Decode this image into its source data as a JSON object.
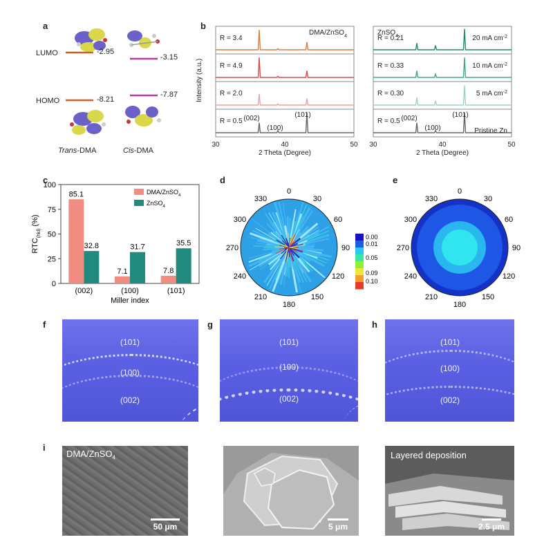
{
  "panel_a": {
    "label": "a",
    "lumo_label": "LUMO",
    "homo_label": "HOMO",
    "trans_lumo": "-2.95",
    "cis_lumo": "-3.15",
    "trans_homo": "-8.21",
    "cis_homo": "-7.87",
    "trans_name_italic": "Trans",
    "trans_name_rest": "-DMA",
    "cis_name_italic": "Cis",
    "cis_name_rest": "-DMA",
    "colors": {
      "trans": "#c8602a",
      "cis": "#b03aa8"
    }
  },
  "panel_b": {
    "label": "b",
    "ylabel": "Intensity (a.u.)",
    "left": {
      "title": "DMA/ZnSO",
      "title_sub": "4",
      "xlabel": "2 Theta (Degree)",
      "ticks": [
        "30",
        "40",
        "50"
      ],
      "traces": [
        {
          "label": "R = 3.4",
          "color": "#e07a3a"
        },
        {
          "label": "R = 4.9",
          "color": "#d94a4a"
        },
        {
          "label": "R = 2.0",
          "color": "#f0a0a0"
        },
        {
          "label": "R = 0.5",
          "color": "#666666"
        }
      ],
      "peak_labels": [
        "(002)",
        "(100)",
        "(101)"
      ]
    },
    "right": {
      "title": "ZnSO",
      "title_sub": "4",
      "xlabel": "2 Theta (Degree)",
      "ticks": [
        "30",
        "40",
        "50"
      ],
      "traces": [
        {
          "label": "R = 0.21",
          "note": "20 mA cm",
          "color": "#1e8a6e"
        },
        {
          "label": "R = 0.33",
          "note": "10 mA cm",
          "color": "#3aa88a"
        },
        {
          "label": "R = 0.30",
          "note": "5 mA cm",
          "color": "#9ad4c4"
        },
        {
          "label": "R = 0.5",
          "note": "Pristine Zn",
          "color": "#666666"
        }
      ],
      "note_sup": "-2",
      "peak_labels": [
        "(002)",
        "(100)",
        "(101)"
      ]
    }
  },
  "chart_data": {
    "type": "bar",
    "label": "c",
    "categories": [
      "(002)",
      "(100)",
      "(101)"
    ],
    "series": [
      {
        "name": "DMA/ZnSO",
        "name_sub": "4",
        "values": [
          85.1,
          7.1,
          7.8
        ],
        "color": "#f08c80"
      },
      {
        "name": "ZnSO",
        "name_sub": "4",
        "values": [
          32.8,
          31.7,
          35.5
        ],
        "color": "#218a7e"
      }
    ],
    "value_labels": [
      [
        "85.1",
        "7.1",
        "7.8"
      ],
      [
        "32.8",
        "31.7",
        "35.5"
      ]
    ],
    "xlabel": "Miller index",
    "ylabel_main": "RTC",
    "ylabel_sub": "(hkl)",
    "ylabel_unit": " (%)",
    "ylim": [
      0,
      100
    ],
    "yticks": [
      "0",
      "25",
      "50",
      "75",
      "100"
    ]
  },
  "panel_d": {
    "label": "d",
    "angles": [
      "0",
      "30",
      "60",
      "90",
      "120",
      "150",
      "180",
      "210",
      "240",
      "270",
      "300",
      "330"
    ]
  },
  "panel_e": {
    "label": "e",
    "angles": [
      "0",
      "30",
      "60",
      "90",
      "120",
      "150",
      "180",
      "210",
      "240",
      "270",
      "300",
      "330"
    ]
  },
  "colorbar": {
    "ticks": [
      "0.00",
      "0.01",
      "0.05",
      "0.09",
      "0.10"
    ]
  },
  "photos": [
    {
      "label": "f",
      "planes": [
        "(101)",
        "(100)",
        "(002)"
      ]
    },
    {
      "label": "g",
      "planes": [
        "(101)",
        "(100)",
        "(002)"
      ]
    },
    {
      "label": "h",
      "planes": [
        "(101)",
        "(100)",
        "(002)"
      ]
    }
  ],
  "sem": {
    "label": "i",
    "images": [
      {
        "title": "DMA/ZnSO",
        "title_sub": "4",
        "scale": "50 μm"
      },
      {
        "title": "",
        "title_sub": "",
        "scale": "5 μm"
      },
      {
        "title": "Layered deposition",
        "title_sub": "",
        "scale": "2.5 μm"
      }
    ]
  }
}
